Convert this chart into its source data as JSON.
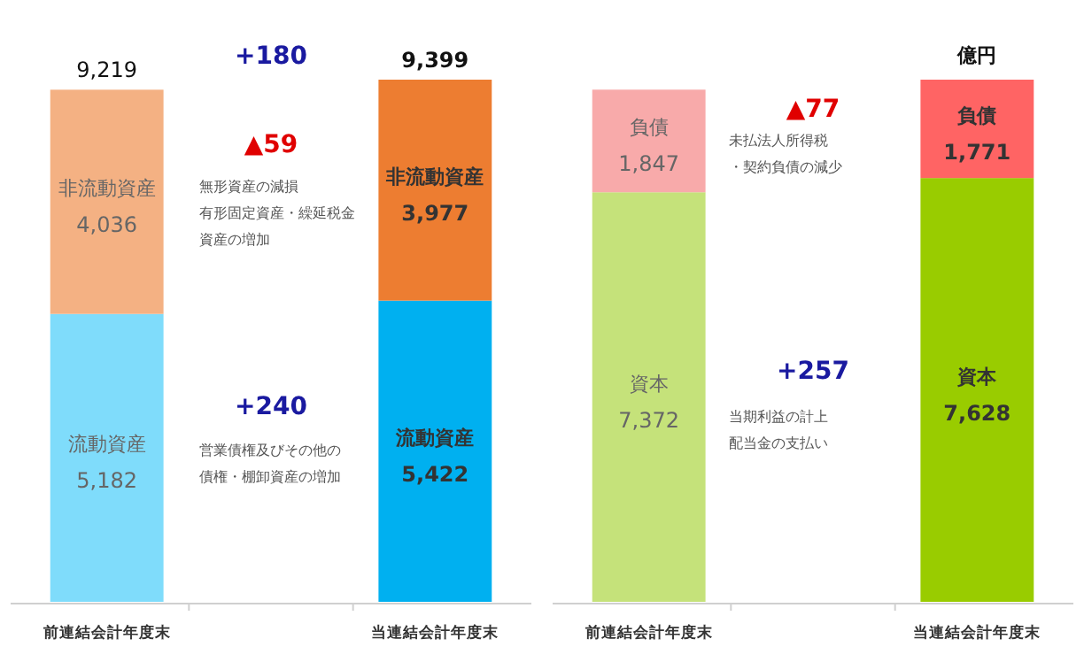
{
  "chart_data": [
    {
      "type": "bar",
      "stacked": true,
      "categories": [
        "前連結会計年度末",
        null,
        "当連結会計年度末"
      ],
      "series": [
        {
          "name": "流動資産",
          "colors": [
            "#7fdcfb",
            null,
            "#00b0f0"
          ],
          "values": [
            5182,
            null,
            5422
          ],
          "value_labels": [
            "5,182",
            null,
            "5,422"
          ]
        },
        {
          "name": "非流動資産",
          "colors": [
            "#f4b183",
            null,
            "#ed7d31"
          ],
          "values": [
            4036,
            null,
            3977
          ],
          "value_labels": [
            "4,036",
            null,
            "3,977"
          ]
        }
      ],
      "totals": [
        "9,219",
        null,
        "9,399"
      ],
      "annotations": [
        "+180",
        "▲59",
        "無形資産の減損",
        "有形固定資産・繰延税金",
        "資産の増加",
        "+240",
        "営業債権及びその他の",
        "債権・棚卸資産の増加"
      ]
    },
    {
      "type": "bar",
      "stacked": true,
      "categories": [
        "前連結会計年度末",
        null,
        "当連結会計年度末"
      ],
      "series": [
        {
          "name": "資本",
          "colors": [
            "#c5e27a",
            null,
            "#99cc00"
          ],
          "values": [
            7372,
            null,
            7628
          ],
          "value_labels": [
            "7,372",
            null,
            "7,628"
          ]
        },
        {
          "name": "負債",
          "colors": [
            "#f8aaaa",
            null,
            "#ff6464"
          ],
          "values": [
            1847,
            null,
            1771
          ],
          "value_labels": [
            "1,847",
            null,
            "1,771"
          ]
        }
      ],
      "annotations": [
        "億円",
        "▲77",
        "未払法人所得税",
        "・契約負債の減少",
        "+257",
        "当期利益の計上",
        "配当金の支払い"
      ]
    }
  ]
}
